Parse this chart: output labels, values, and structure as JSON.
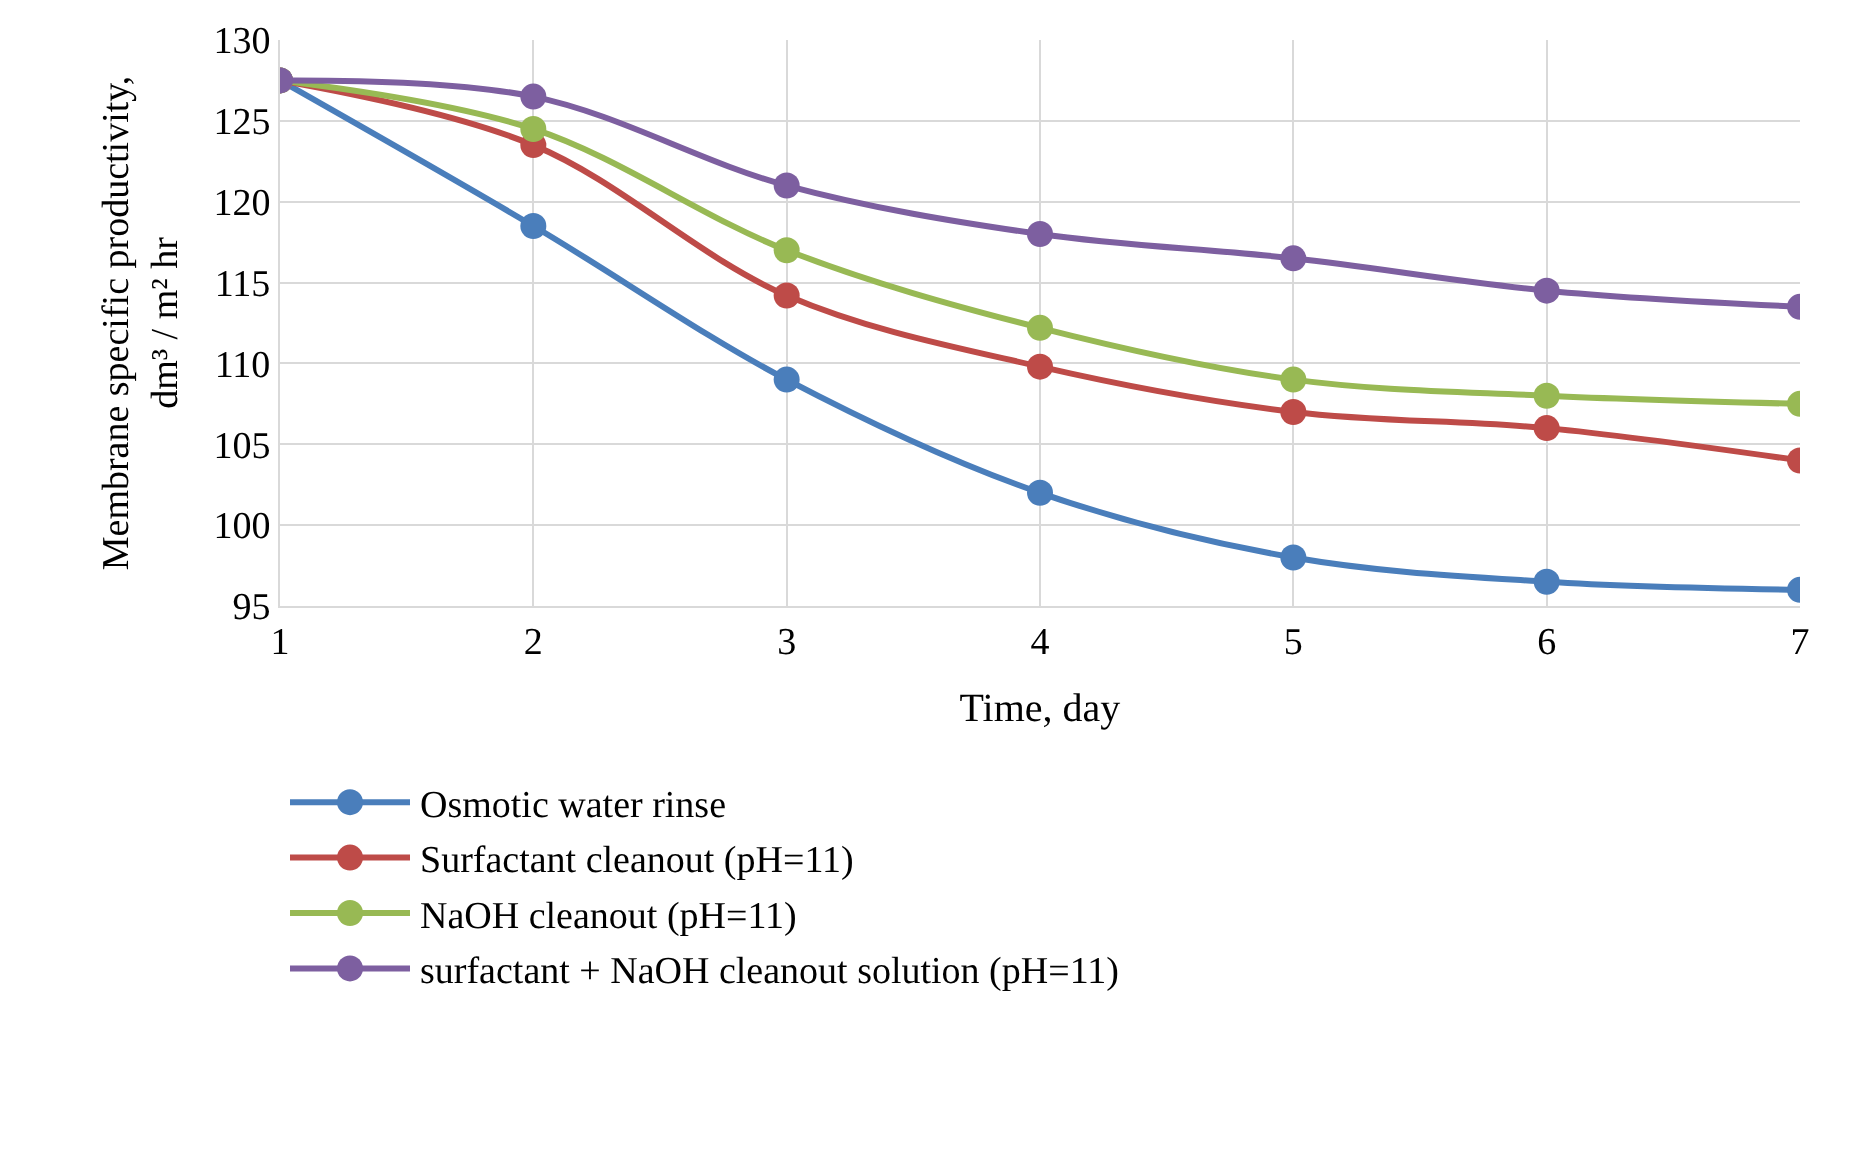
{
  "chart_data": {
    "type": "line",
    "xlabel": "Time, day",
    "ylabel": "Membrane specific productivity,\ndm³ / m² hr",
    "x": [
      1,
      2,
      3,
      4,
      5,
      6,
      7
    ],
    "series": [
      {
        "name": "Osmotic water rinse",
        "color": "#4a7ebb",
        "values": [
          127.5,
          118.5,
          109,
          102,
          98,
          96.5,
          96
        ]
      },
      {
        "name": "Surfactant cleanout (pH=11)",
        "color": "#be4b48",
        "values": [
          127.5,
          123.5,
          114.2,
          109.8,
          107,
          106,
          104
        ]
      },
      {
        "name": "NaOH cleanout (pH=11)",
        "color": "#98b954",
        "values": [
          127.5,
          124.5,
          117,
          112.2,
          109,
          108,
          107.5
        ]
      },
      {
        "name": "surfactant + NaOH cleanout solution (pH=11)",
        "color": "#7d5fa0",
        "values": [
          127.5,
          126.5,
          121,
          118,
          116.5,
          114.5,
          113.5
        ]
      }
    ],
    "xlim": [
      1,
      7
    ],
    "xticks": [
      1,
      2,
      3,
      4,
      5,
      6,
      7
    ],
    "ylim": [
      95,
      130
    ],
    "yticks": [
      95,
      100,
      105,
      110,
      115,
      120,
      125,
      130
    ],
    "grid": true,
    "legend": "bottom",
    "marker": "circle",
    "line_style": "solid"
  }
}
